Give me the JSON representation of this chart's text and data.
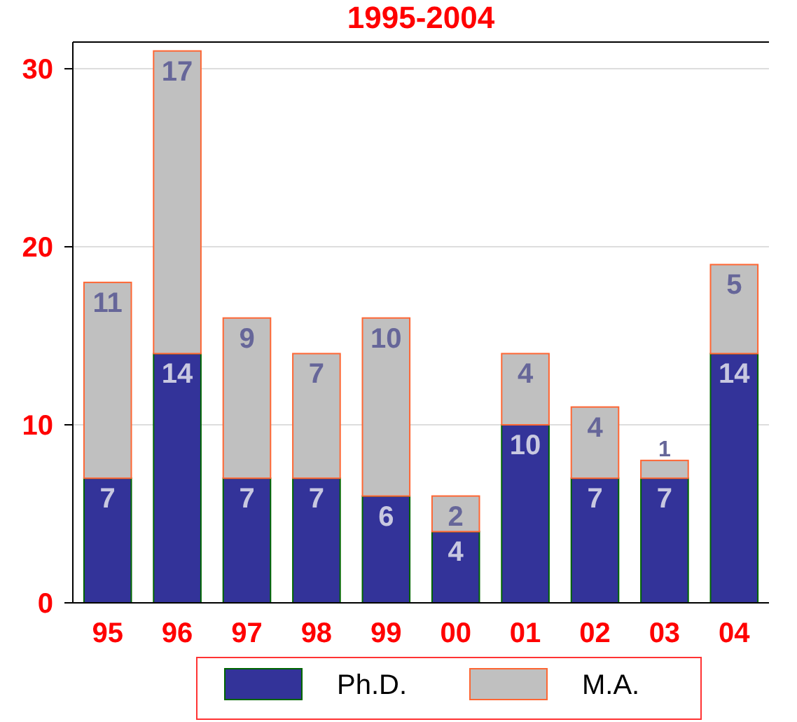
{
  "chart_data": {
    "type": "bar",
    "title": "1995-2004",
    "categories": [
      "95",
      "96",
      "97",
      "98",
      "99",
      "00",
      "01",
      "02",
      "03",
      "04"
    ],
    "stacked": true,
    "series": [
      {
        "name": "Ph.D.",
        "color": "#333399",
        "values": [
          7,
          14,
          7,
          7,
          6,
          4,
          10,
          7,
          7,
          14
        ]
      },
      {
        "name": "M.A.",
        "color": "#c0c0c0",
        "values": [
          11,
          17,
          9,
          7,
          10,
          2,
          4,
          4,
          1,
          5
        ]
      }
    ],
    "ylim": [
      0,
      31.5
    ],
    "yticks": [
      0,
      10,
      20,
      30
    ],
    "grid": "y",
    "legend": "bottom",
    "data_labels": true
  }
}
